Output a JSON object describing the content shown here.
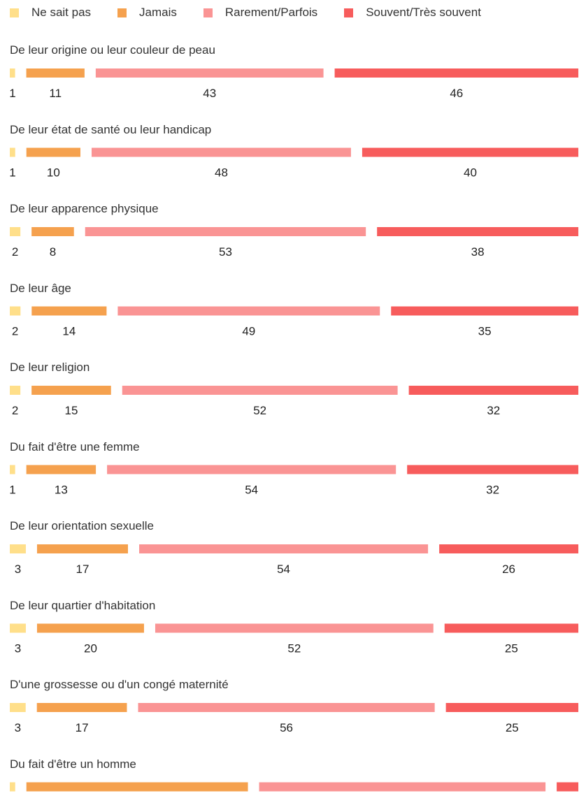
{
  "chart_data": {
    "type": "bar",
    "stacked": true,
    "orientation": "horizontal",
    "legend_position": "top-left",
    "series": [
      {
        "name": "Ne sait pas",
        "color": "#FFDF8A"
      },
      {
        "name": "Jamais",
        "color": "#F5A14E"
      },
      {
        "name": "Rarement/Parfois",
        "color": "#FA9494"
      },
      {
        "name": "Souvent/Très souvent",
        "color": "#F75C5C"
      }
    ],
    "categories": [
      "De leur origine ou leur couleur de peau",
      "De leur état de santé ou leur handicap",
      "De leur apparence physique",
      "De leur âge",
      "De leur religion",
      "Du fait d'être une femme",
      "De leur orientation sexuelle",
      "De leur quartier d'habitation",
      "D'une grossesse ou d'un congé maternité",
      "Du fait d'être un homme"
    ],
    "values": [
      [
        1,
        11,
        43,
        46
      ],
      [
        1,
        10,
        48,
        40
      ],
      [
        2,
        8,
        53,
        38
      ],
      [
        2,
        14,
        49,
        35
      ],
      [
        2,
        15,
        52,
        32
      ],
      [
        1,
        13,
        54,
        32
      ],
      [
        3,
        17,
        54,
        26
      ],
      [
        3,
        20,
        52,
        25
      ],
      [
        3,
        17,
        56,
        25
      ],
      [
        1,
        41,
        53,
        4
      ]
    ]
  }
}
